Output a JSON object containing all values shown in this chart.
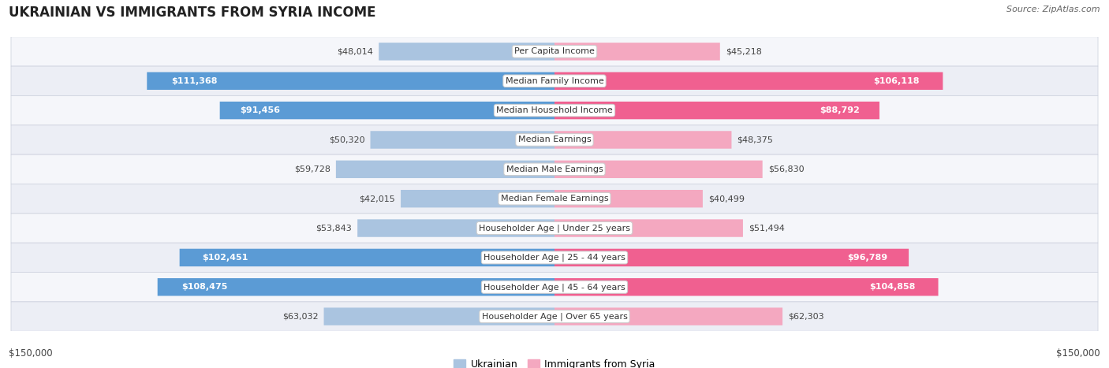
{
  "title": "UKRAINIAN VS IMMIGRANTS FROM SYRIA INCOME",
  "source": "Source: ZipAtlas.com",
  "categories": [
    "Per Capita Income",
    "Median Family Income",
    "Median Household Income",
    "Median Earnings",
    "Median Male Earnings",
    "Median Female Earnings",
    "Householder Age | Under 25 years",
    "Householder Age | 25 - 44 years",
    "Householder Age | 45 - 64 years",
    "Householder Age | Over 65 years"
  ],
  "ukrainian_values": [
    48014,
    111368,
    91456,
    50320,
    59728,
    42015,
    53843,
    102451,
    108475,
    63032
  ],
  "syria_values": [
    45218,
    106118,
    88792,
    48375,
    56830,
    40499,
    51494,
    96789,
    104858,
    62303
  ],
  "ukrainian_labels": [
    "$48,014",
    "$111,368",
    "$91,456",
    "$50,320",
    "$59,728",
    "$42,015",
    "$53,843",
    "$102,451",
    "$108,475",
    "$63,032"
  ],
  "syria_labels": [
    "$45,218",
    "$106,118",
    "$88,792",
    "$48,375",
    "$56,830",
    "$40,499",
    "$51,494",
    "$96,789",
    "$104,858",
    "$62,303"
  ],
  "ukrainian_color_light": "#aac4e0",
  "ukrainian_color_dark": "#5b9bd5",
  "syria_color_light": "#f4a8c0",
  "syria_color_dark": "#f06090",
  "max_value": 150000,
  "bar_height": 0.58,
  "row_bg_colors": [
    "#f5f6fa",
    "#eceef5"
  ],
  "label_inside_threshold": 70000,
  "legend_ukrainian": "Ukrainian",
  "legend_syria": "Immigrants from Syria",
  "axis_label_left": "$150,000",
  "axis_label_right": "$150,000",
  "title_fontsize": 12,
  "source_fontsize": 8,
  "label_fontsize": 8,
  "category_fontsize": 8
}
